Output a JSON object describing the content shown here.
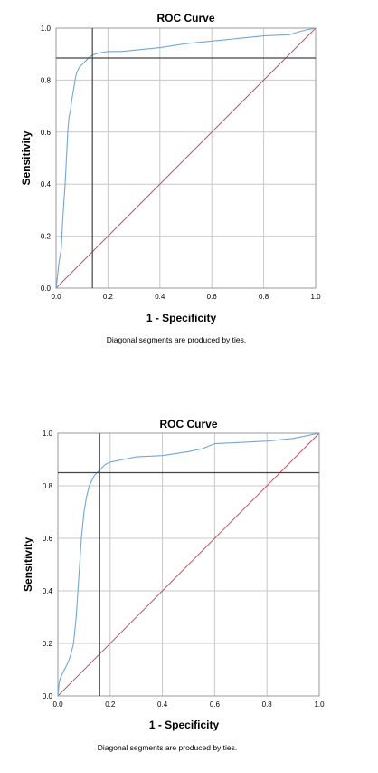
{
  "chart_data": [
    {
      "type": "line",
      "title": "ROC Curve",
      "xlabel": "1 - Specificity",
      "ylabel": "Sensitivity",
      "xlim": [
        0,
        1
      ],
      "ylim": [
        0,
        1
      ],
      "grid": true,
      "xticks": [
        "0.0",
        "0.2",
        "0.4",
        "0.6",
        "0.8",
        "1.0"
      ],
      "yticks": [
        "0.0",
        "0.2",
        "0.4",
        "0.6",
        "0.8",
        "1.0"
      ],
      "footnote": "Diagonal segments are produced by ties.",
      "reference_lines": {
        "x": 0.14,
        "y": 0.885
      },
      "colors": {
        "curve": "#6fa8dc",
        "diagonal": "#c44f6e",
        "reference": "#444444",
        "grid": "#c8c8c8"
      },
      "series": [
        {
          "x": [
            0,
            0.005,
            0.01,
            0.015,
            0.02,
            0.025,
            0.03,
            0.035,
            0.04,
            0.045,
            0.05,
            0.055,
            0.06,
            0.065,
            0.07,
            0.075,
            0.08,
            0.09,
            0.1,
            0.11,
            0.12,
            0.13,
            0.14,
            0.15,
            0.17,
            0.2,
            0.25,
            0.3,
            0.4,
            0.5,
            0.6,
            0.65,
            0.7,
            0.8,
            0.9,
            0.95,
            1.0
          ],
          "y": [
            0,
            0.04,
            0.09,
            0.12,
            0.15,
            0.25,
            0.33,
            0.4,
            0.5,
            0.6,
            0.66,
            0.68,
            0.72,
            0.75,
            0.78,
            0.81,
            0.83,
            0.85,
            0.86,
            0.87,
            0.88,
            0.89,
            0.895,
            0.9,
            0.905,
            0.91,
            0.91,
            0.915,
            0.925,
            0.94,
            0.95,
            0.955,
            0.96,
            0.97,
            0.975,
            0.99,
            1.0
          ]
        },
        {
          "x": [
            0,
            1
          ],
          "y": [
            0,
            1
          ]
        }
      ]
    },
    {
      "type": "line",
      "title": "ROC Curve",
      "xlabel": "1 - Specificity",
      "ylabel": "Sensitivity",
      "xlim": [
        0,
        1
      ],
      "ylim": [
        0,
        1
      ],
      "grid": true,
      "xticks": [
        "0.0",
        "0.2",
        "0.4",
        "0.6",
        "0.8",
        "1.0"
      ],
      "yticks": [
        "0.0",
        "0.2",
        "0.4",
        "0.6",
        "0.8",
        "1.0"
      ],
      "footnote": "Diagonal segments are produced by ties.",
      "reference_lines": {
        "x": 0.16,
        "y": 0.85
      },
      "colors": {
        "curve": "#6fa8dc",
        "diagonal": "#c44f6e",
        "reference": "#444444",
        "grid": "#c8c8c8"
      },
      "series": [
        {
          "x": [
            0,
            0.005,
            0.01,
            0.02,
            0.03,
            0.04,
            0.05,
            0.06,
            0.07,
            0.08,
            0.09,
            0.1,
            0.11,
            0.12,
            0.13,
            0.14,
            0.15,
            0.16,
            0.17,
            0.18,
            0.2,
            0.25,
            0.3,
            0.4,
            0.5,
            0.55,
            0.6,
            0.7,
            0.8,
            0.9,
            0.95,
            1.0
          ],
          "y": [
            0,
            0.05,
            0.07,
            0.09,
            0.11,
            0.13,
            0.16,
            0.2,
            0.3,
            0.45,
            0.6,
            0.7,
            0.76,
            0.8,
            0.82,
            0.84,
            0.85,
            0.86,
            0.87,
            0.88,
            0.89,
            0.9,
            0.91,
            0.915,
            0.93,
            0.94,
            0.96,
            0.965,
            0.97,
            0.98,
            0.99,
            1.0
          ]
        },
        {
          "x": [
            0,
            1
          ],
          "y": [
            0,
            1
          ]
        }
      ]
    }
  ]
}
